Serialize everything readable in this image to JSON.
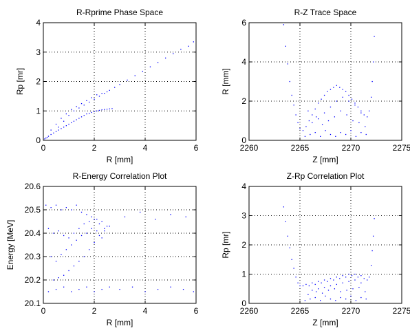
{
  "chart_data": [
    {
      "type": "scatter",
      "title": "R-Rprime Phase Space",
      "xlabel": "R [mm]",
      "ylabel": "Rp [mr]",
      "xlim": [
        0,
        6
      ],
      "ylim": [
        0,
        4
      ],
      "xticks": [
        0,
        2,
        4,
        6
      ],
      "yticks": [
        0,
        1,
        2,
        3,
        4
      ],
      "grid": true,
      "marker_color": "#0000ff",
      "series": [
        {
          "x": [
            0.05,
            0.1,
            0.15,
            0.2,
            0.3,
            0.4,
            0.5,
            0.6,
            0.7,
            0.8,
            0.9,
            1.0,
            1.1,
            1.2,
            1.3,
            1.4,
            1.5,
            1.6,
            1.7,
            1.8,
            1.9,
            2.0,
            2.1,
            2.2,
            2.3,
            2.4,
            2.5,
            2.6,
            2.7,
            0.3,
            0.5,
            0.7,
            0.9,
            1.1,
            1.3,
            1.5,
            1.7,
            1.9,
            2.1,
            2.3,
            2.5,
            0.6,
            0.8,
            1.0,
            1.2,
            1.4,
            1.6,
            1.8,
            2.0,
            2.2,
            2.4,
            2.6,
            2.8,
            3.0,
            3.3,
            3.6,
            3.9,
            4.2,
            4.5,
            4.8,
            5.1,
            5.4,
            5.7,
            5.9
          ],
          "y": [
            0.05,
            0.08,
            0.1,
            0.14,
            0.2,
            0.25,
            0.3,
            0.35,
            0.4,
            0.45,
            0.5,
            0.55,
            0.6,
            0.65,
            0.7,
            0.75,
            0.8,
            0.85,
            0.9,
            0.92,
            0.95,
            0.98,
            1.0,
            1.02,
            1.04,
            1.05,
            1.06,
            1.07,
            1.08,
            0.35,
            0.55,
            0.75,
            0.9,
            1.05,
            1.15,
            1.25,
            1.35,
            1.45,
            1.55,
            1.6,
            1.65,
            0.45,
            0.65,
            0.85,
            1.0,
            1.1,
            1.2,
            1.3,
            1.4,
            1.5,
            1.6,
            1.7,
            1.8,
            1.9,
            2.05,
            2.2,
            2.35,
            2.5,
            2.65,
            2.8,
            2.95,
            3.1,
            3.2,
            3.35
          ]
        }
      ]
    },
    {
      "type": "scatter",
      "title": "R-Z Trace Space",
      "xlabel": "Z [mm]",
      "ylabel": "R [mm]",
      "xlim": [
        2260,
        2275
      ],
      "ylim": [
        0,
        6
      ],
      "xticks": [
        2260,
        2265,
        2270,
        2275
      ],
      "yticks": [
        0,
        2,
        4,
        6
      ],
      "grid": true,
      "marker_color": "#0000ff",
      "series": [
        {
          "x": [
            2263.4,
            2263.6,
            2263.8,
            2264.0,
            2264.2,
            2264.4,
            2264.6,
            2264.8,
            2265.0,
            2265.3,
            2265.6,
            2265.9,
            2266.2,
            2266.5,
            2266.8,
            2267.1,
            2267.4,
            2267.7,
            2268.0,
            2268.3,
            2268.6,
            2268.9,
            2269.2,
            2269.5,
            2269.8,
            2270.1,
            2270.4,
            2270.7,
            2271.0,
            2271.3,
            2271.6,
            2271.8,
            2272.0,
            2272.1,
            2272.2,
            2272.3,
            2265.5,
            2266.0,
            2266.5,
            2267.0,
            2267.5,
            2268.0,
            2268.5,
            2269.0,
            2269.5,
            2270.0,
            2270.5,
            2271.0,
            2271.5,
            2266.2,
            2266.8,
            2267.4,
            2268.0,
            2268.6,
            2269.2,
            2269.8,
            2270.4,
            2271.0,
            2265.8,
            2266.6,
            2267.2,
            2267.8,
            2268.4,
            2269.0,
            2269.6,
            2270.2,
            2270.8,
            2271.4
          ],
          "y": [
            5.9,
            4.8,
            3.9,
            3.0,
            2.3,
            1.8,
            1.3,
            0.9,
            0.6,
            0.5,
            0.7,
            1.0,
            1.3,
            1.6,
            1.9,
            2.1,
            2.3,
            2.5,
            2.6,
            2.7,
            2.8,
            2.7,
            2.6,
            2.5,
            2.3,
            2.1,
            1.9,
            1.7,
            1.5,
            1.3,
            1.2,
            1.5,
            2.2,
            3.0,
            4.0,
            5.3,
            0.2,
            0.3,
            0.4,
            0.2,
            0.5,
            0.3,
            0.2,
            0.4,
            0.3,
            0.5,
            0.2,
            0.4,
            0.3,
            0.9,
            1.1,
            1.4,
            1.7,
            2.0,
            2.2,
            2.0,
            1.8,
            1.4,
            1.5,
            1.2,
            0.8,
            1.0,
            1.2,
            1.5,
            1.3,
            1.0,
            0.9,
            0.7
          ]
        }
      ]
    },
    {
      "type": "scatter",
      "title": "R-Energy Correlation Plot",
      "xlabel": "R [mm]",
      "ylabel": "Energy [MeV]",
      "xlim": [
        0,
        6
      ],
      "ylim": [
        20.1,
        20.6
      ],
      "xticks": [
        0,
        2,
        4,
        6
      ],
      "yticks": [
        20.1,
        20.2,
        20.3,
        20.4,
        20.5,
        20.6
      ],
      "grid": true,
      "marker_color": "#0000ff",
      "series": [
        {
          "x": [
            0.1,
            0.3,
            0.5,
            0.7,
            0.9,
            1.1,
            1.3,
            1.5,
            1.7,
            1.9,
            2.1,
            2.3,
            2.5,
            0.2,
            0.4,
            0.6,
            0.8,
            1.0,
            1.2,
            1.4,
            1.6,
            1.8,
            2.0,
            2.2,
            2.4,
            0.3,
            0.5,
            0.7,
            0.9,
            1.1,
            1.3,
            1.5,
            1.7,
            1.9,
            2.1,
            2.3,
            0.4,
            0.6,
            0.8,
            1.0,
            1.2,
            1.4,
            1.6,
            1.8,
            2.0,
            2.2,
            2.4,
            2.6,
            0.2,
            0.5,
            0.8,
            1.1,
            1.4,
            1.7,
            2.0,
            2.3,
            2.6,
            3.0,
            3.5,
            4.0,
            4.5,
            5.0,
            5.5,
            5.9,
            3.2,
            3.8,
            4.4,
            5.0,
            5.6
          ],
          "y": [
            20.52,
            20.51,
            20.52,
            20.5,
            20.51,
            20.5,
            20.52,
            20.49,
            20.48,
            20.47,
            20.46,
            20.45,
            20.43,
            20.42,
            20.4,
            20.41,
            20.39,
            20.38,
            20.4,
            20.42,
            20.44,
            20.45,
            20.46,
            20.44,
            20.42,
            20.3,
            20.28,
            20.31,
            20.33,
            20.35,
            20.37,
            20.39,
            20.4,
            20.42,
            20.41,
            20.38,
            20.2,
            20.21,
            20.22,
            20.24,
            20.26,
            20.28,
            20.3,
            20.33,
            20.36,
            20.39,
            20.41,
            20.43,
            20.15,
            20.16,
            20.17,
            20.15,
            20.16,
            20.17,
            20.15,
            20.16,
            20.17,
            20.16,
            20.17,
            20.15,
            20.16,
            20.17,
            20.16,
            20.15,
            20.47,
            20.49,
            20.46,
            20.48,
            20.47
          ]
        }
      ]
    },
    {
      "type": "scatter",
      "title": "Z-Rp Correlation Plot",
      "xlabel": "Z [mm]",
      "ylabel": "Rp [mr]",
      "xlim": [
        2260,
        2275
      ],
      "ylim": [
        0,
        4
      ],
      "xticks": [
        2260,
        2265,
        2270,
        2275
      ],
      "yticks": [
        0,
        1,
        2,
        3,
        4
      ],
      "grid": true,
      "marker_color": "#0000ff",
      "series": [
        {
          "x": [
            2263.4,
            2263.6,
            2263.8,
            2264.0,
            2264.2,
            2264.4,
            2264.6,
            2264.8,
            2265.0,
            2265.3,
            2265.6,
            2265.9,
            2266.2,
            2266.5,
            2266.8,
            2267.1,
            2267.4,
            2267.7,
            2268.0,
            2268.3,
            2268.6,
            2268.9,
            2269.2,
            2269.5,
            2269.8,
            2270.1,
            2270.4,
            2270.7,
            2271.0,
            2271.3,
            2271.6,
            2271.8,
            2272.0,
            2272.1,
            2272.2,
            2272.3,
            2265.5,
            2266.0,
            2266.5,
            2267.0,
            2267.5,
            2268.0,
            2268.5,
            2269.0,
            2269.5,
            2270.0,
            2270.5,
            2271.0,
            2271.5,
            2266.2,
            2266.8,
            2267.4,
            2268.0,
            2268.6,
            2269.2,
            2269.8,
            2270.4,
            2271.0,
            2265.8,
            2266.6,
            2267.2,
            2267.8,
            2268.4,
            2269.0,
            2269.6,
            2270.2,
            2270.8,
            2271.4
          ],
          "y": [
            3.3,
            2.8,
            2.3,
            1.9,
            1.5,
            1.2,
            0.9,
            0.7,
            0.6,
            0.6,
            0.65,
            0.6,
            0.7,
            0.65,
            0.75,
            0.7,
            0.8,
            0.75,
            0.85,
            0.8,
            0.9,
            0.85,
            0.95,
            0.9,
            1.0,
            0.95,
            1.0,
            0.9,
            0.95,
            0.85,
            0.8,
            0.9,
            1.3,
            1.8,
            2.3,
            2.9,
            0.1,
            0.15,
            0.2,
            0.1,
            0.25,
            0.15,
            0.1,
            0.2,
            0.15,
            0.25,
            0.1,
            0.2,
            0.15,
            0.45,
            0.5,
            0.55,
            0.6,
            0.65,
            0.7,
            0.75,
            0.8,
            0.7,
            0.3,
            0.4,
            0.35,
            0.45,
            0.5,
            0.4,
            0.45,
            0.5,
            0.55,
            0.4
          ]
        }
      ]
    }
  ]
}
